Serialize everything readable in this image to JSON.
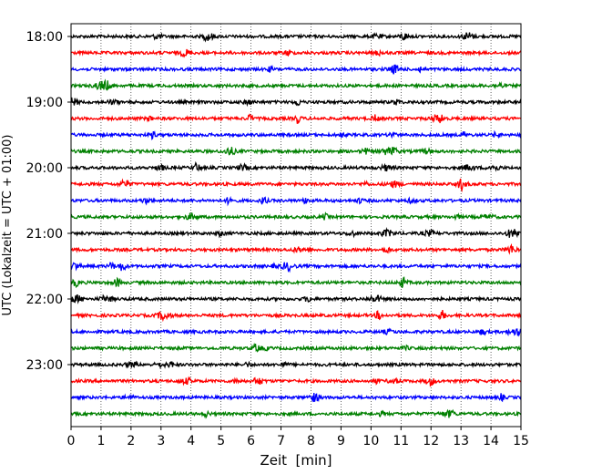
{
  "chart_data": {
    "type": "line",
    "title": "",
    "xlabel": "Zeit  [min]",
    "ylabel": "UTC (Lokalzeit = UTC + 01:00)",
    "xlim": [
      0,
      15
    ],
    "x_ticks": [
      "0",
      "1",
      "2",
      "3",
      "4",
      "5",
      "6",
      "7",
      "8",
      "9",
      "10",
      "11",
      "12",
      "13",
      "14",
      "15"
    ],
    "y_ticks": [
      "18:00",
      "19:00",
      "20:00",
      "21:00",
      "22:00",
      "23:00"
    ],
    "grid": "vertical dotted at each minute",
    "color_cycle": [
      "#000000",
      "#ff0000",
      "#0000ff",
      "#008000"
    ],
    "traces": [
      {
        "start": "18:00",
        "color": "#000000"
      },
      {
        "start": "18:15",
        "color": "#ff0000"
      },
      {
        "start": "18:30",
        "color": "#0000ff"
      },
      {
        "start": "18:45",
        "color": "#008000"
      },
      {
        "start": "19:00",
        "color": "#000000"
      },
      {
        "start": "19:15",
        "color": "#ff0000"
      },
      {
        "start": "19:30",
        "color": "#0000ff"
      },
      {
        "start": "19:45",
        "color": "#008000"
      },
      {
        "start": "20:00",
        "color": "#000000"
      },
      {
        "start": "20:15",
        "color": "#ff0000"
      },
      {
        "start": "20:30",
        "color": "#0000ff"
      },
      {
        "start": "20:45",
        "color": "#008000"
      },
      {
        "start": "21:00",
        "color": "#000000"
      },
      {
        "start": "21:15",
        "color": "#ff0000"
      },
      {
        "start": "21:30",
        "color": "#0000ff"
      },
      {
        "start": "21:45",
        "color": "#008000"
      },
      {
        "start": "22:00",
        "color": "#000000"
      },
      {
        "start": "22:15",
        "color": "#ff0000"
      },
      {
        "start": "22:30",
        "color": "#0000ff"
      },
      {
        "start": "22:45",
        "color": "#008000"
      },
      {
        "start": "23:00",
        "color": "#000000"
      },
      {
        "start": "23:15",
        "color": "#ff0000"
      },
      {
        "start": "23:30",
        "color": "#0000ff"
      },
      {
        "start": "23:45",
        "color": "#008000"
      }
    ]
  }
}
